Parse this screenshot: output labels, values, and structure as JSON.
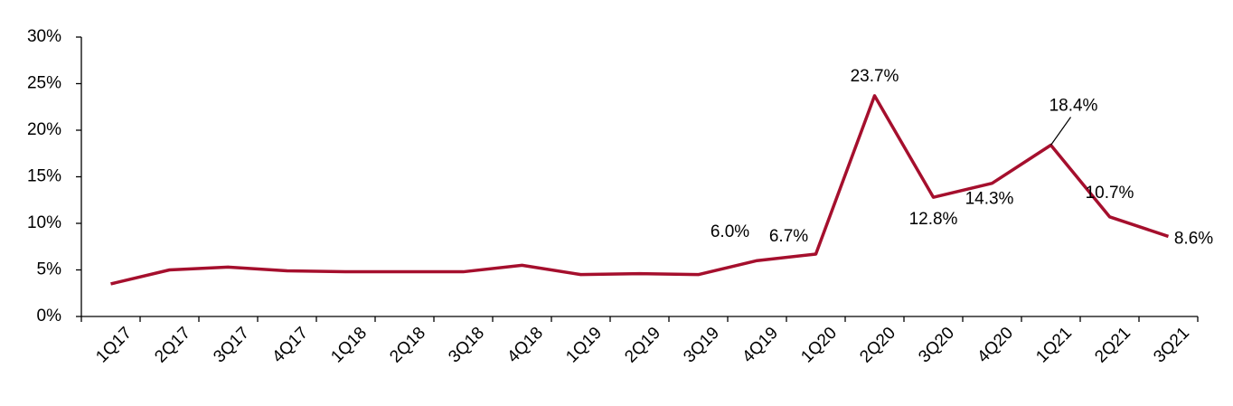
{
  "chart_data": {
    "type": "line",
    "categories": [
      "1Q17",
      "2Q17",
      "3Q17",
      "4Q17",
      "1Q18",
      "2Q18",
      "3Q18",
      "4Q18",
      "1Q19",
      "2Q19",
      "3Q19",
      "4Q19",
      "1Q20",
      "2Q20",
      "3Q20",
      "4Q20",
      "1Q21",
      "2Q21",
      "3Q21"
    ],
    "series": [
      {
        "color": "#a50f2d",
        "values": [
          3.5,
          5.0,
          5.3,
          4.9,
          4.8,
          4.8,
          4.8,
          5.5,
          4.5,
          4.6,
          4.5,
          6.0,
          6.7,
          23.7,
          12.8,
          14.3,
          18.4,
          10.7,
          8.6
        ],
        "value_labels": [
          null,
          null,
          null,
          null,
          null,
          null,
          null,
          null,
          null,
          null,
          null,
          "6.0%",
          "6.7%",
          "23.7%",
          "12.8%",
          "14.3%",
          "18.4%",
          "10.7%",
          "8.6%"
        ]
      }
    ],
    "ylim": [
      0,
      30
    ],
    "yticks": [
      {
        "value": 0,
        "label": "0%"
      },
      {
        "value": 5,
        "label": "5%"
      },
      {
        "value": 10,
        "label": "10%"
      },
      {
        "value": 15,
        "label": "15%"
      },
      {
        "value": 20,
        "label": "20%"
      },
      {
        "value": 25,
        "label": "25%"
      },
      {
        "value": 30,
        "label": "30%"
      }
    ],
    "grid": false
  }
}
